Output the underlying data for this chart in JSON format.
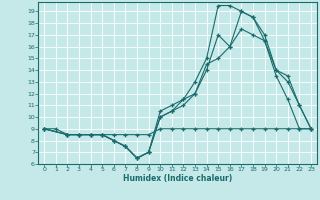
{
  "title": "",
  "xlabel": "Humidex (Indice chaleur)",
  "background_color": "#c5e8e8",
  "grid_color": "#d8f0f0",
  "line_color": "#1a6b6b",
  "xlim": [
    -0.5,
    23.5
  ],
  "ylim": [
    6,
    19.8
  ],
  "xticks": [
    0,
    1,
    2,
    3,
    4,
    5,
    6,
    7,
    8,
    9,
    10,
    11,
    12,
    13,
    14,
    15,
    16,
    17,
    18,
    19,
    20,
    21,
    22,
    23
  ],
  "yticks": [
    6,
    7,
    8,
    9,
    10,
    11,
    12,
    13,
    14,
    15,
    16,
    17,
    18,
    19
  ],
  "lines": [
    {
      "x": [
        0,
        1,
        2,
        3,
        4,
        5,
        6,
        7,
        8,
        9,
        10,
        11,
        12,
        13,
        14,
        15,
        16,
        17,
        18,
        19,
        20,
        21,
        22,
        23
      ],
      "y": [
        9,
        9,
        8.5,
        8.5,
        8.5,
        8.5,
        8.5,
        8.5,
        8.5,
        8.5,
        9,
        9,
        9,
        9,
        9,
        9,
        9,
        9,
        9,
        9,
        9,
        9,
        9,
        9
      ]
    },
    {
      "x": [
        0,
        2,
        3,
        4,
        5,
        6,
        7,
        8,
        9,
        10,
        11,
        12,
        13,
        14,
        15,
        16,
        17,
        18,
        19,
        20,
        21,
        22,
        23
      ],
      "y": [
        9,
        8.5,
        8.5,
        8.5,
        8.5,
        8,
        7.5,
        6.5,
        7,
        10.5,
        11,
        11.5,
        13,
        15,
        19.5,
        19.5,
        19,
        18.5,
        16.5,
        13.5,
        11.5,
        9,
        9
      ]
    },
    {
      "x": [
        0,
        2,
        3,
        4,
        5,
        6,
        7,
        8,
        9,
        10,
        11,
        12,
        13,
        14,
        15,
        16,
        17,
        18,
        19,
        20,
        21,
        22,
        23
      ],
      "y": [
        9,
        8.5,
        8.5,
        8.5,
        8.5,
        8,
        7.5,
        6.5,
        7,
        10,
        10.5,
        11,
        12,
        14,
        17,
        16,
        19,
        18.5,
        17,
        14,
        13,
        11,
        9
      ]
    },
    {
      "x": [
        0,
        2,
        3,
        4,
        5,
        6,
        7,
        8,
        9,
        10,
        11,
        12,
        13,
        14,
        15,
        16,
        17,
        18,
        19,
        20,
        21,
        22,
        23
      ],
      "y": [
        9,
        8.5,
        8.5,
        8.5,
        8.5,
        8,
        7.5,
        6.5,
        7,
        10,
        10.5,
        11.5,
        12,
        14.5,
        15,
        16,
        17.5,
        17,
        16.5,
        14,
        13.5,
        11,
        9
      ]
    }
  ]
}
